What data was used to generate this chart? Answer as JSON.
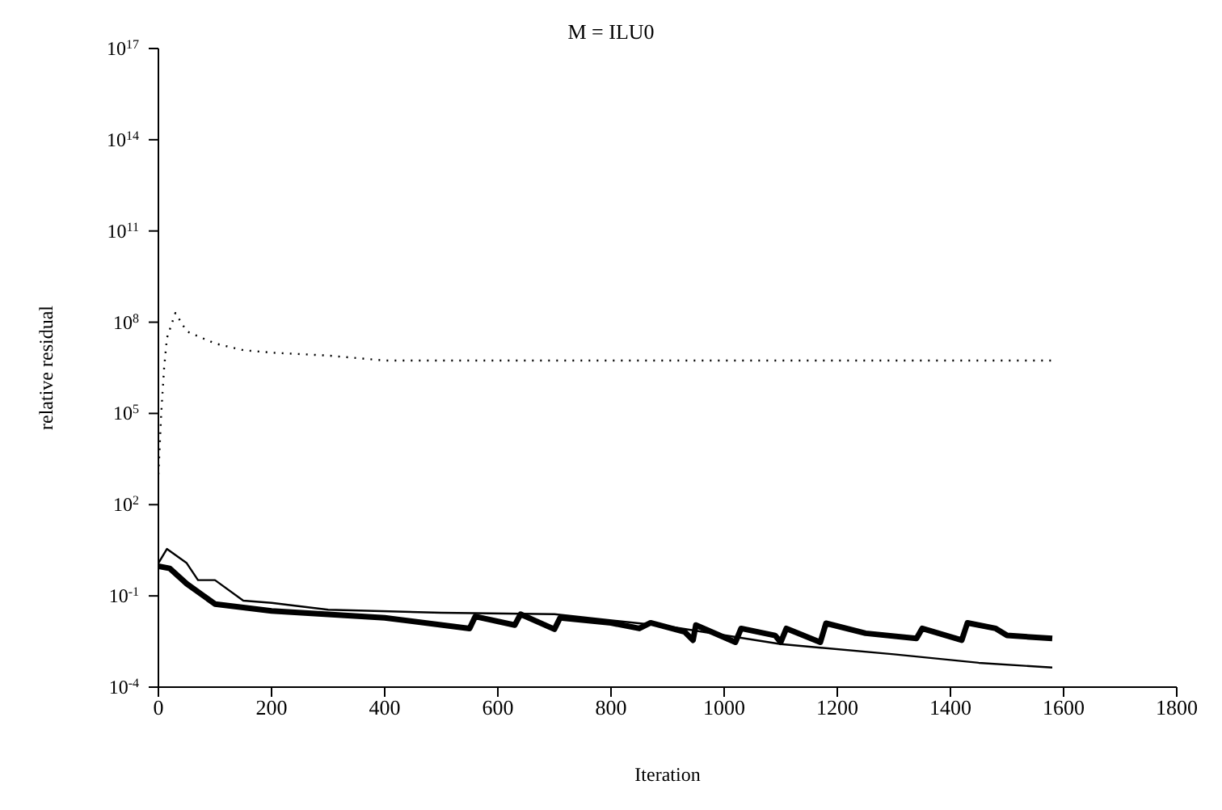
{
  "chart_data": {
    "type": "line",
    "title": "M = ILU0",
    "xlabel": "Iteration",
    "ylabel": "relative residual",
    "log": "y",
    "grid": false,
    "legend": false,
    "marker": "none",
    "xlim": [
      0,
      1800
    ],
    "xticks": [
      0,
      200,
      400,
      600,
      800,
      1000,
      1200,
      1400,
      1600,
      1800
    ],
    "ylim": [
      0.0001,
      1e+17
    ],
    "yticks": [
      {
        "value": 0.0001,
        "label": "10$^{-4}$"
      },
      {
        "value": 0.1,
        "label": "10$^{-1}$"
      },
      {
        "value": 100,
        "label": "10$^{2}$"
      },
      {
        "value": 100000,
        "label": "10$^{5}$"
      },
      {
        "value": 100000000,
        "label": "10$^{8}$"
      },
      {
        "value": 100000000000,
        "label": "10$^{11}$"
      },
      {
        "value": 100000000000000,
        "label": "10$^{14}$"
      },
      {
        "value": 1e+17,
        "label": "10$^{17}$"
      }
    ],
    "series": [
      {
        "color": "#000000",
        "line_style": "dotted",
        "x": [
          0,
          5,
          10,
          15,
          30,
          50,
          100,
          150,
          200,
          300,
          400,
          800,
          1200,
          1580
        ],
        "values": [
          1000,
          100000,
          3000000,
          30000000,
          200000000,
          50000000,
          20000000,
          12000000,
          10000000,
          8000000,
          5500000,
          5500000,
          5500000,
          5500000
        ]
      },
      {
        "color": "#000000",
        "line_style": "solid",
        "x": [
          0,
          20,
          50,
          100,
          200,
          400,
          550,
          560,
          630,
          640,
          700,
          710,
          800,
          850,
          870,
          930,
          945,
          950,
          1020,
          1030,
          1090,
          1100,
          1110,
          1170,
          1180,
          1250,
          1340,
          1350,
          1420,
          1430,
          1480,
          1500,
          1580
        ],
        "values": [
          0.95,
          0.8,
          0.25,
          0.054,
          0.032,
          0.019,
          0.0085,
          0.021,
          0.011,
          0.025,
          0.008,
          0.019,
          0.013,
          0.0085,
          0.013,
          0.0066,
          0.0035,
          0.011,
          0.003,
          0.0085,
          0.005,
          0.003,
          0.0085,
          0.003,
          0.0126,
          0.0059,
          0.004,
          0.0085,
          0.0035,
          0.013,
          0.0085,
          0.005,
          0.004
        ]
      },
      {
        "color": "#000000",
        "line_style": "solid",
        "x": [
          0,
          15,
          50,
          70,
          100,
          150,
          200,
          300,
          500,
          700,
          900,
          1100,
          1300,
          1450,
          1580
        ],
        "values": [
          1.2,
          3.5,
          1.2,
          0.33,
          0.33,
          0.07,
          0.059,
          0.035,
          0.028,
          0.025,
          0.01,
          0.0026,
          0.0012,
          0.00063,
          0.00044
        ]
      }
    ]
  }
}
